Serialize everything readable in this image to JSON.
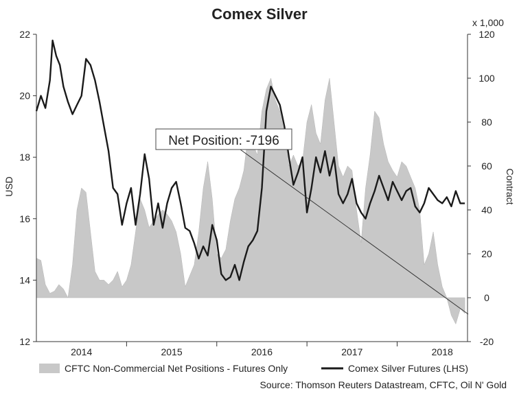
{
  "chart_data": {
    "type": "line",
    "title": "Comex Silver",
    "ylabel_left": "USD",
    "ylabel_right": "Contract",
    "right_axis_multiplier": "x 1,000",
    "y_left_range": [
      12,
      22
    ],
    "y_left_ticks": [
      "12",
      "14",
      "16",
      "18",
      "20",
      "22"
    ],
    "y_right_range": [
      -20,
      120
    ],
    "y_right_ticks": [
      "-20",
      "0",
      "20",
      "40",
      "60",
      "80",
      "100",
      "120"
    ],
    "x_ticks": [
      "2014",
      "2015",
      "2016",
      "2017",
      "2018"
    ],
    "annotation": "Net Position: -7196",
    "source": "Source: Thomson Reuters Datastream, CFTC, Oil N' Gold",
    "series": [
      {
        "name": "CFTC Non-Commercial Net Positions - Futures Only",
        "style": "area",
        "axis": "right",
        "color": "#c8c8c8",
        "points": [
          [
            2013.5,
            18
          ],
          [
            2013.55,
            17
          ],
          [
            2013.6,
            6
          ],
          [
            2013.65,
            2
          ],
          [
            2013.7,
            3
          ],
          [
            2013.75,
            6
          ],
          [
            2013.8,
            4
          ],
          [
            2013.85,
            0
          ],
          [
            2013.9,
            15
          ],
          [
            2013.95,
            40
          ],
          [
            2014.0,
            50
          ],
          [
            2014.05,
            48
          ],
          [
            2014.1,
            30
          ],
          [
            2014.15,
            12
          ],
          [
            2014.2,
            8
          ],
          [
            2014.25,
            8
          ],
          [
            2014.3,
            6
          ],
          [
            2014.35,
            8
          ],
          [
            2014.4,
            12
          ],
          [
            2014.45,
            5
          ],
          [
            2014.5,
            8
          ],
          [
            2014.55,
            15
          ],
          [
            2014.6,
            30
          ],
          [
            2014.65,
            45
          ],
          [
            2014.7,
            40
          ],
          [
            2014.75,
            32
          ],
          [
            2014.8,
            35
          ],
          [
            2014.85,
            38
          ],
          [
            2014.9,
            40
          ],
          [
            2014.95,
            38
          ],
          [
            2015.0,
            35
          ],
          [
            2015.05,
            30
          ],
          [
            2015.1,
            20
          ],
          [
            2015.15,
            5
          ],
          [
            2015.2,
            10
          ],
          [
            2015.25,
            15
          ],
          [
            2015.3,
            30
          ],
          [
            2015.35,
            50
          ],
          [
            2015.4,
            62
          ],
          [
            2015.45,
            45
          ],
          [
            2015.5,
            20
          ],
          [
            2015.55,
            18
          ],
          [
            2015.6,
            22
          ],
          [
            2015.65,
            35
          ],
          [
            2015.7,
            45
          ],
          [
            2015.75,
            50
          ],
          [
            2015.8,
            58
          ],
          [
            2015.85,
            75
          ],
          [
            2015.9,
            70
          ],
          [
            2015.95,
            65
          ],
          [
            2016.0,
            85
          ],
          [
            2016.05,
            95
          ],
          [
            2016.1,
            100
          ],
          [
            2016.15,
            90
          ],
          [
            2016.2,
            85
          ],
          [
            2016.25,
            75
          ],
          [
            2016.3,
            60
          ],
          [
            2016.35,
            65
          ],
          [
            2016.4,
            60
          ],
          [
            2016.45,
            62
          ],
          [
            2016.5,
            80
          ],
          [
            2016.55,
            88
          ],
          [
            2016.6,
            75
          ],
          [
            2016.65,
            70
          ],
          [
            2016.7,
            90
          ],
          [
            2016.75,
            100
          ],
          [
            2016.8,
            80
          ],
          [
            2016.85,
            60
          ],
          [
            2016.9,
            55
          ],
          [
            2016.95,
            60
          ],
          [
            2017.0,
            58
          ],
          [
            2017.05,
            40
          ],
          [
            2017.1,
            25
          ],
          [
            2017.15,
            50
          ],
          [
            2017.2,
            65
          ],
          [
            2017.25,
            85
          ],
          [
            2017.3,
            82
          ],
          [
            2017.35,
            70
          ],
          [
            2017.4,
            62
          ],
          [
            2017.45,
            58
          ],
          [
            2017.5,
            55
          ],
          [
            2017.55,
            62
          ],
          [
            2017.6,
            60
          ],
          [
            2017.65,
            55
          ],
          [
            2017.7,
            50
          ],
          [
            2017.75,
            40
          ],
          [
            2017.8,
            15
          ],
          [
            2017.85,
            20
          ],
          [
            2017.9,
            30
          ],
          [
            2017.95,
            15
          ],
          [
            2018.0,
            5
          ],
          [
            2018.05,
            0
          ],
          [
            2018.1,
            -8
          ],
          [
            2018.15,
            -12
          ],
          [
            2018.2,
            -5
          ],
          [
            2018.25,
            -7.2
          ]
        ]
      },
      {
        "name": "Comex Silver Futures (LHS)",
        "style": "line",
        "axis": "left",
        "color": "#1a1a1a",
        "points": [
          [
            2013.5,
            19.5
          ],
          [
            2013.55,
            20.0
          ],
          [
            2013.6,
            19.6
          ],
          [
            2013.65,
            20.5
          ],
          [
            2013.68,
            21.8
          ],
          [
            2013.72,
            21.3
          ],
          [
            2013.76,
            21.0
          ],
          [
            2013.8,
            20.3
          ],
          [
            2013.85,
            19.8
          ],
          [
            2013.9,
            19.4
          ],
          [
            2013.95,
            19.7
          ],
          [
            2014.0,
            20.0
          ],
          [
            2014.05,
            21.2
          ],
          [
            2014.1,
            21.0
          ],
          [
            2014.15,
            20.5
          ],
          [
            2014.2,
            19.8
          ],
          [
            2014.25,
            19.0
          ],
          [
            2014.3,
            18.2
          ],
          [
            2014.35,
            17.0
          ],
          [
            2014.4,
            16.8
          ],
          [
            2014.45,
            15.8
          ],
          [
            2014.5,
            16.5
          ],
          [
            2014.55,
            17.0
          ],
          [
            2014.6,
            15.8
          ],
          [
            2014.65,
            16.8
          ],
          [
            2014.7,
            18.1
          ],
          [
            2014.75,
            17.3
          ],
          [
            2014.8,
            15.8
          ],
          [
            2014.85,
            16.5
          ],
          [
            2014.9,
            15.7
          ],
          [
            2014.95,
            16.5
          ],
          [
            2015.0,
            17.0
          ],
          [
            2015.05,
            17.2
          ],
          [
            2015.1,
            16.5
          ],
          [
            2015.15,
            15.7
          ],
          [
            2015.2,
            15.6
          ],
          [
            2015.25,
            15.2
          ],
          [
            2015.3,
            14.7
          ],
          [
            2015.35,
            15.1
          ],
          [
            2015.4,
            14.8
          ],
          [
            2015.45,
            15.8
          ],
          [
            2015.5,
            15.3
          ],
          [
            2015.55,
            14.2
          ],
          [
            2015.6,
            14.0
          ],
          [
            2015.65,
            14.1
          ],
          [
            2015.7,
            14.5
          ],
          [
            2015.75,
            14.0
          ],
          [
            2015.8,
            14.6
          ],
          [
            2015.85,
            15.1
          ],
          [
            2015.9,
            15.3
          ],
          [
            2015.95,
            15.6
          ],
          [
            2016.0,
            17.0
          ],
          [
            2016.05,
            19.5
          ],
          [
            2016.1,
            20.3
          ],
          [
            2016.15,
            20.0
          ],
          [
            2016.2,
            19.7
          ],
          [
            2016.25,
            19.0
          ],
          [
            2016.3,
            18.0
          ],
          [
            2016.35,
            17.1
          ],
          [
            2016.4,
            17.5
          ],
          [
            2016.45,
            18.0
          ],
          [
            2016.5,
            16.2
          ],
          [
            2016.55,
            17.0
          ],
          [
            2016.6,
            18.0
          ],
          [
            2016.65,
            17.5
          ],
          [
            2016.7,
            18.2
          ],
          [
            2016.75,
            17.4
          ],
          [
            2016.8,
            18.0
          ],
          [
            2016.85,
            16.8
          ],
          [
            2016.9,
            16.5
          ],
          [
            2016.95,
            16.8
          ],
          [
            2017.0,
            17.3
          ],
          [
            2017.05,
            16.5
          ],
          [
            2017.1,
            16.2
          ],
          [
            2017.15,
            16.0
          ],
          [
            2017.2,
            16.5
          ],
          [
            2017.25,
            16.9
          ],
          [
            2017.3,
            17.4
          ],
          [
            2017.35,
            17.0
          ],
          [
            2017.4,
            16.6
          ],
          [
            2017.45,
            17.2
          ],
          [
            2017.5,
            16.9
          ],
          [
            2017.55,
            16.6
          ],
          [
            2017.6,
            16.9
          ],
          [
            2017.65,
            17.0
          ],
          [
            2017.7,
            16.4
          ],
          [
            2017.75,
            16.2
          ],
          [
            2017.8,
            16.5
          ],
          [
            2017.85,
            17.0
          ],
          [
            2017.9,
            16.8
          ],
          [
            2017.95,
            16.6
          ],
          [
            2018.0,
            16.5
          ],
          [
            2018.05,
            16.7
          ],
          [
            2018.1,
            16.4
          ],
          [
            2018.15,
            16.9
          ],
          [
            2018.2,
            16.5
          ],
          [
            2018.25,
            16.5
          ]
        ]
      }
    ]
  }
}
